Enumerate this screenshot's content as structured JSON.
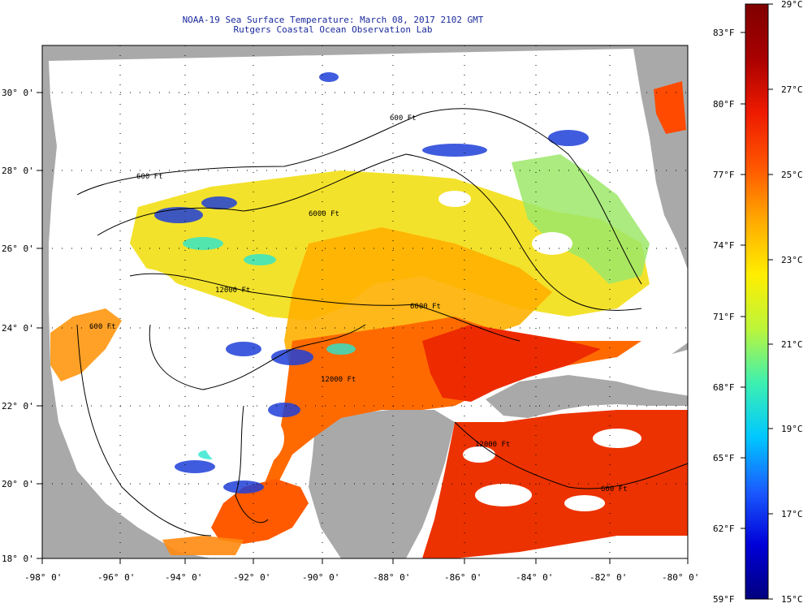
{
  "header": {
    "title_line1": "NOAA-19 Sea Surface Temperature:  March 08, 2017 2102 GMT",
    "title_line2": "Rutgers Coastal Ocean Observation Lab"
  },
  "map": {
    "lon_labels": [
      "-98° 0'",
      "-96° 0'",
      "-94° 0'",
      "-92° 0'",
      "-90° 0'",
      "-88° 0'",
      "-86° 0'",
      "-84° 0'",
      "-82° 0'",
      "-80° 0'"
    ],
    "lat_labels": [
      "30° 0'",
      "28° 0'",
      "26° 0'",
      "24° 0'",
      "22° 0'",
      "20° 0'",
      "18° 0'"
    ],
    "contour_labels": [
      "600 Ft",
      "600 Ft",
      "6000 Ft",
      "12000 Ft",
      "6000 Ft",
      "600 Ft",
      "12000 Ft",
      "12000 Ft",
      "600 Ft"
    ],
    "colors": {
      "land": "#a9a9a9",
      "cloud": "#ffffff",
      "frame": "#000000"
    }
  },
  "colorbar": {
    "f_labels": [
      "83°F",
      "80°F",
      "77°F",
      "74°F",
      "71°F",
      "68°F",
      "65°F",
      "62°F",
      "59°F"
    ],
    "c_labels": [
      "29°C",
      "27°C",
      "25°C",
      "23°C",
      "21°C",
      "19°C",
      "17°C",
      "15°C"
    ],
    "scale_colors": [
      "#00007f",
      "#0000d8",
      "#1a5cff",
      "#00c8ff",
      "#3df0b0",
      "#bdf53a",
      "#ffee00",
      "#ffaa00",
      "#ff5500",
      "#ee1a00",
      "#a80000",
      "#7f0000"
    ]
  }
}
